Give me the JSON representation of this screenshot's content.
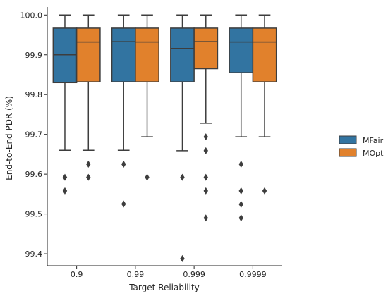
{
  "chart_data": {
    "type": "box",
    "xlabel": "Target Reliability",
    "ylabel": "End-to-End PDR (%)",
    "ylim": [
      99.37,
      100.02
    ],
    "yticks": [
      99.4,
      99.5,
      99.6,
      99.7,
      99.8,
      99.9,
      100.0
    ],
    "ytick_labels": [
      "99.4",
      "99.5",
      "99.6",
      "99.7",
      "99.8",
      "99.9",
      "100.0"
    ],
    "categories": [
      "0.9",
      "0.99",
      "0.999",
      "0.9999"
    ],
    "legend_position": "right",
    "series": [
      {
        "name": "MFair",
        "color": "#3274a1",
        "boxes": [
          {
            "whisker_low": 99.66,
            "q1": 99.83,
            "median": 99.9,
            "q3": 99.967,
            "whisker_high": 100.0,
            "outliers": [
              99.592,
              99.558
            ]
          },
          {
            "whisker_low": 99.66,
            "q1": 99.832,
            "median": 99.933,
            "q3": 99.967,
            "whisker_high": 100.0,
            "outliers": [
              99.625,
              99.525
            ]
          },
          {
            "whisker_low": 99.659,
            "q1": 99.832,
            "median": 99.916,
            "q3": 99.967,
            "whisker_high": 100.0,
            "outliers": [
              99.592,
              99.388
            ]
          },
          {
            "whisker_low": 99.694,
            "q1": 99.855,
            "median": 99.932,
            "q3": 99.967,
            "whisker_high": 100.0,
            "outliers": [
              99.625,
              99.558,
              99.524,
              99.49
            ]
          }
        ]
      },
      {
        "name": "MOpt",
        "color": "#e1812c",
        "boxes": [
          {
            "whisker_low": 99.66,
            "q1": 99.832,
            "median": 99.932,
            "q3": 99.967,
            "whisker_high": 100.0,
            "outliers": [
              99.625,
              99.592
            ]
          },
          {
            "whisker_low": 99.694,
            "q1": 99.832,
            "median": 99.932,
            "q3": 99.967,
            "whisker_high": 100.0,
            "outliers": [
              99.592
            ]
          },
          {
            "whisker_low": 99.728,
            "q1": 99.865,
            "median": 99.933,
            "q3": 99.967,
            "whisker_high": 100.0,
            "outliers": [
              99.694,
              99.659,
              99.592,
              99.558,
              99.49
            ]
          },
          {
            "whisker_low": 99.694,
            "q1": 99.832,
            "median": 99.932,
            "q3": 99.967,
            "whisker_high": 100.0,
            "outliers": [
              99.558
            ]
          }
        ]
      }
    ]
  }
}
